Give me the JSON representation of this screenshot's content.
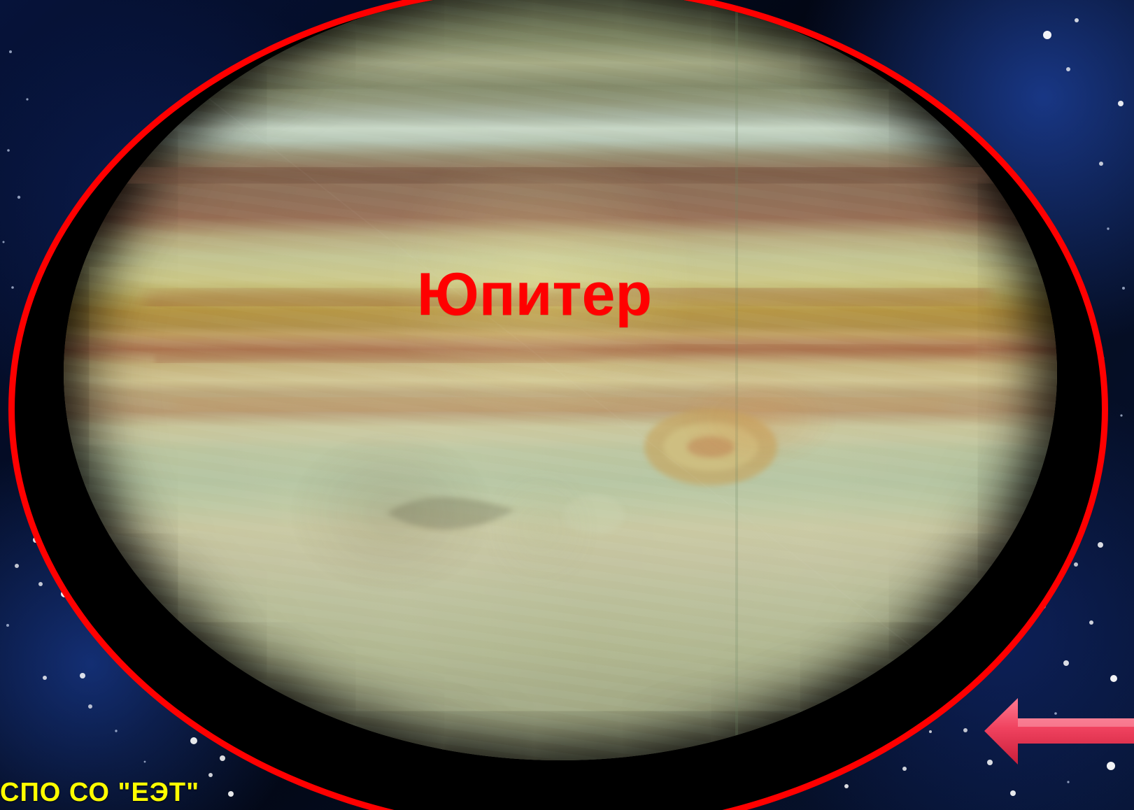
{
  "slide": {
    "title": "Юпитер",
    "footer": "СПО СО \"ЕЭТ\""
  },
  "navigation": {
    "back_arrow_icon": "left-arrow-icon"
  },
  "colors": {
    "title": "#ff0000",
    "frame": "#ff0000",
    "footer": "#ffff00",
    "arrow": "#e8395f"
  }
}
